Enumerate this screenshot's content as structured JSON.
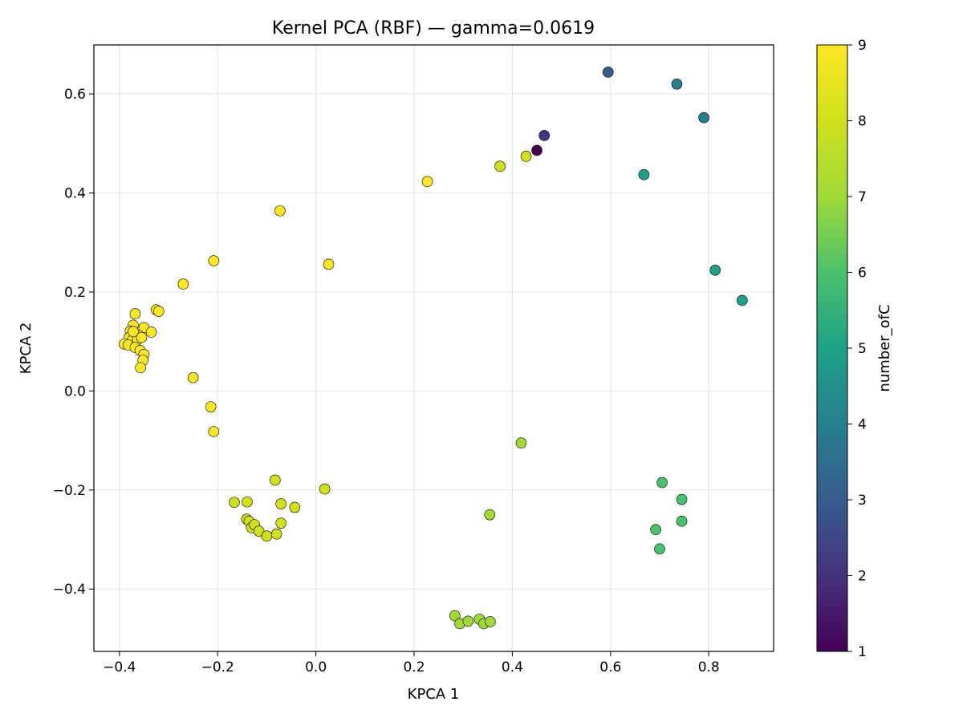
{
  "chart_data": {
    "type": "scatter",
    "title": "Kernel PCA (RBF) — gamma=0.0619",
    "xlabel": "KPCA 1",
    "ylabel": "KPCA 2",
    "xlim": [
      -0.452,
      0.932
    ],
    "ylim": [
      -0.526,
      0.699
    ],
    "grid": true,
    "x_ticks": [
      -0.4,
      -0.2,
      0.0,
      0.2,
      0.4,
      0.6,
      0.8
    ],
    "x_tick_labels": [
      "−0.4",
      "−0.2",
      "0.0",
      "0.2",
      "0.4",
      "0.6",
      "0.8"
    ],
    "y_ticks": [
      -0.4,
      -0.2,
      0.0,
      0.2,
      0.4,
      0.6
    ],
    "y_tick_labels": [
      "−0.4",
      "−0.2",
      "0.0",
      "0.2",
      "0.4",
      "0.6"
    ],
    "colorbar": {
      "label": "number_ofC",
      "colormap": "viridis",
      "min": 1,
      "max": 9,
      "ticks": [
        1,
        2,
        3,
        4,
        5,
        6,
        7,
        8,
        9
      ],
      "tick_labels": [
        "1",
        "2",
        "3",
        "4",
        "5",
        "6",
        "7",
        "8",
        "9"
      ]
    },
    "points": [
      {
        "x": 0.45,
        "y": 0.486,
        "c": 1
      },
      {
        "x": 0.465,
        "y": 0.516,
        "c": 2
      },
      {
        "x": 0.595,
        "y": 0.644,
        "c": 3
      },
      {
        "x": 0.735,
        "y": 0.62,
        "c": 4
      },
      {
        "x": 0.79,
        "y": 0.552,
        "c": 4
      },
      {
        "x": 0.668,
        "y": 0.437,
        "c": 5
      },
      {
        "x": 0.813,
        "y": 0.244,
        "c": 5
      },
      {
        "x": 0.868,
        "y": 0.183,
        "c": 5
      },
      {
        "x": 0.705,
        "y": -0.185,
        "c": 6
      },
      {
        "x": 0.745,
        "y": -0.219,
        "c": 6
      },
      {
        "x": 0.745,
        "y": -0.263,
        "c": 6
      },
      {
        "x": 0.692,
        "y": -0.28,
        "c": 6
      },
      {
        "x": 0.7,
        "y": -0.319,
        "c": 6
      },
      {
        "x": 0.418,
        "y": -0.105,
        "c": 7
      },
      {
        "x": 0.354,
        "y": -0.25,
        "c": 7
      },
      {
        "x": 0.283,
        "y": -0.454,
        "c": 7
      },
      {
        "x": 0.293,
        "y": -0.47,
        "c": 7
      },
      {
        "x": 0.31,
        "y": -0.465,
        "c": 7
      },
      {
        "x": 0.333,
        "y": -0.461,
        "c": 7
      },
      {
        "x": 0.342,
        "y": -0.47,
        "c": 7
      },
      {
        "x": 0.355,
        "y": -0.466,
        "c": 7
      },
      {
        "x": 0.375,
        "y": 0.454,
        "c": 8
      },
      {
        "x": 0.428,
        "y": 0.474,
        "c": 8
      },
      {
        "x": -0.083,
        "y": -0.18,
        "c": 8
      },
      {
        "x": 0.018,
        "y": -0.198,
        "c": 8
      },
      {
        "x": -0.166,
        "y": -0.225,
        "c": 8
      },
      {
        "x": -0.14,
        "y": -0.224,
        "c": 8
      },
      {
        "x": -0.071,
        "y": -0.228,
        "c": 8
      },
      {
        "x": -0.043,
        "y": -0.235,
        "c": 8
      },
      {
        "x": -0.141,
        "y": -0.259,
        "c": 8
      },
      {
        "x": -0.136,
        "y": -0.263,
        "c": 8
      },
      {
        "x": -0.131,
        "y": -0.276,
        "c": 8
      },
      {
        "x": -0.125,
        "y": -0.27,
        "c": 8
      },
      {
        "x": -0.116,
        "y": -0.283,
        "c": 8
      },
      {
        "x": -0.1,
        "y": -0.293,
        "c": 8
      },
      {
        "x": -0.08,
        "y": -0.289,
        "c": 8
      },
      {
        "x": -0.071,
        "y": -0.267,
        "c": 8
      },
      {
        "x": 0.227,
        "y": 0.423,
        "c": 9
      },
      {
        "x": -0.073,
        "y": 0.364,
        "c": 9
      },
      {
        "x": 0.026,
        "y": 0.256,
        "c": 9
      },
      {
        "x": -0.208,
        "y": 0.263,
        "c": 9
      },
      {
        "x": -0.27,
        "y": 0.216,
        "c": 9
      },
      {
        "x": -0.25,
        "y": 0.027,
        "c": 9
      },
      {
        "x": -0.214,
        "y": -0.032,
        "c": 9
      },
      {
        "x": -0.208,
        "y": -0.082,
        "c": 9
      },
      {
        "x": -0.368,
        "y": 0.156,
        "c": 9
      },
      {
        "x": -0.325,
        "y": 0.164,
        "c": 9
      },
      {
        "x": -0.32,
        "y": 0.161,
        "c": 9
      },
      {
        "x": -0.372,
        "y": 0.133,
        "c": 9
      },
      {
        "x": -0.35,
        "y": 0.128,
        "c": 9
      },
      {
        "x": -0.378,
        "y": 0.121,
        "c": 9
      },
      {
        "x": -0.335,
        "y": 0.119,
        "c": 9
      },
      {
        "x": -0.36,
        "y": 0.112,
        "c": 9
      },
      {
        "x": -0.38,
        "y": 0.108,
        "c": 9
      },
      {
        "x": -0.374,
        "y": 0.102,
        "c": 9
      },
      {
        "x": -0.363,
        "y": 0.104,
        "c": 9
      },
      {
        "x": -0.39,
        "y": 0.095,
        "c": 9
      },
      {
        "x": -0.382,
        "y": 0.093,
        "c": 9
      },
      {
        "x": -0.368,
        "y": 0.088,
        "c": 9
      },
      {
        "x": -0.358,
        "y": 0.082,
        "c": 9
      },
      {
        "x": -0.35,
        "y": 0.074,
        "c": 9
      },
      {
        "x": -0.352,
        "y": 0.062,
        "c": 9
      },
      {
        "x": -0.357,
        "y": 0.047,
        "c": 9
      },
      {
        "x": -0.372,
        "y": 0.12,
        "c": 9
      },
      {
        "x": -0.355,
        "y": 0.108,
        "c": 9
      }
    ]
  }
}
